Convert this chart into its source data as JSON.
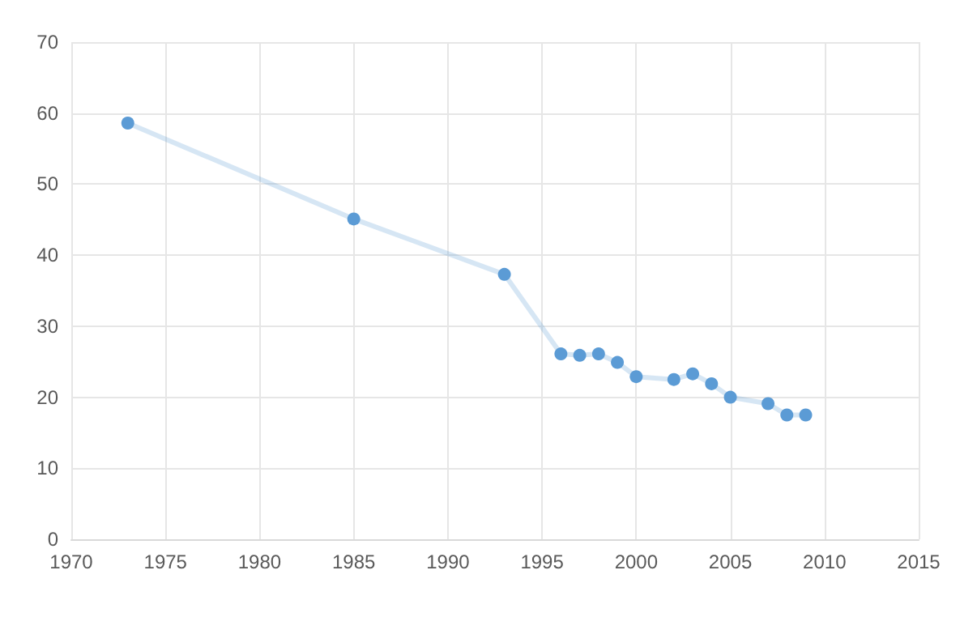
{
  "chart_data": {
    "type": "line",
    "x": [
      1973,
      1985,
      1993,
      1996,
      1997,
      1998,
      1999,
      2000,
      2002,
      2003,
      2004,
      2005,
      2007,
      2008,
      2009
    ],
    "series": [
      {
        "color": "#5b9bd5",
        "values": [
          58.6,
          45.1,
          37.3,
          26.1,
          25.9,
          26.1,
          24.9,
          22.9,
          22.5,
          23.3,
          21.9,
          20.0,
          19.1,
          17.5,
          17.5
        ]
      }
    ],
    "xlim": [
      1970,
      2015
    ],
    "xticks": [
      1970,
      1975,
      1980,
      1985,
      1990,
      1995,
      2000,
      2005,
      2010,
      2015
    ],
    "ylim": [
      0,
      70
    ],
    "yticks": [
      0,
      10,
      20,
      30,
      40,
      50,
      60,
      70
    ],
    "grid": true,
    "marker": "circle"
  }
}
